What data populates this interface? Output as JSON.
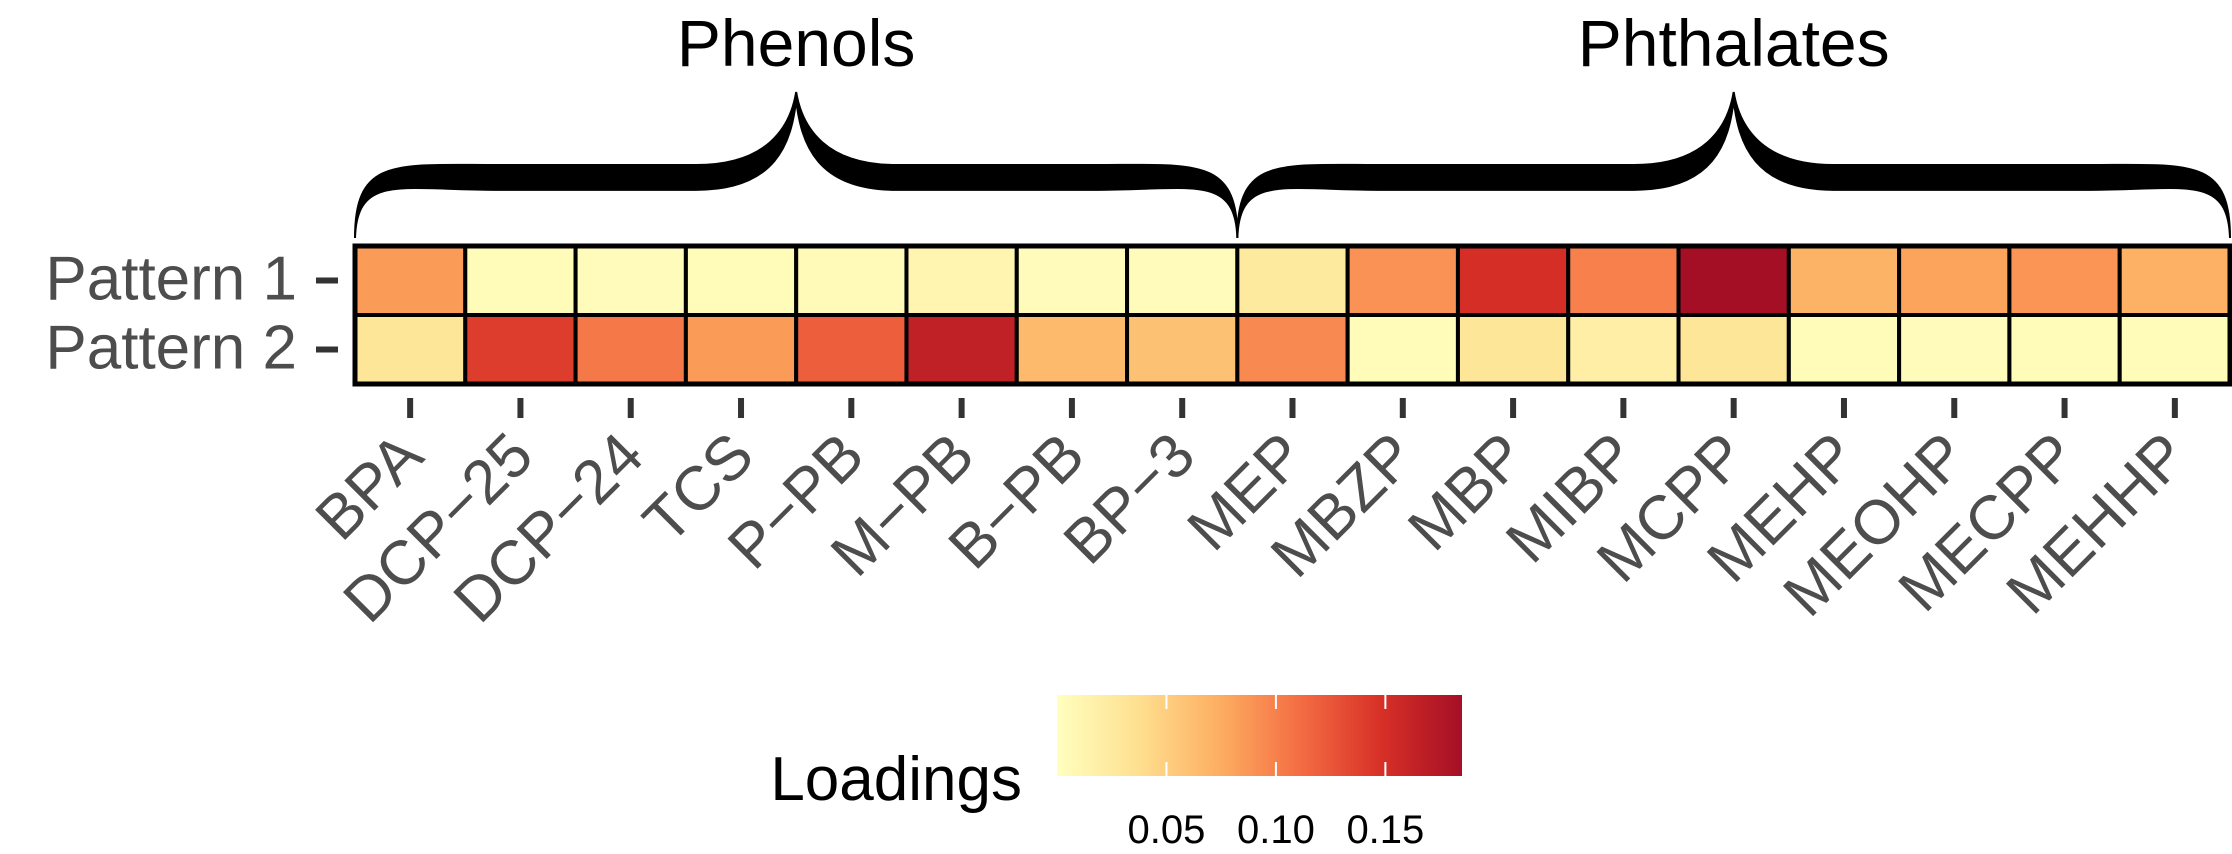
{
  "chart_data": {
    "type": "heatmap",
    "groups": [
      {
        "label": "Phenols",
        "start": 0,
        "end": 8
      },
      {
        "label": "Phthalates",
        "start": 8,
        "end": 17
      }
    ],
    "x_categories": [
      "BPA",
      "DCP−25",
      "DCP−24",
      "TCS",
      "P−PB",
      "M−PB",
      "B−PB",
      "BP−3",
      "MEP",
      "MBZP",
      "MBP",
      "MIBP",
      "MCPP",
      "MEHP",
      "MEOHP",
      "MECPP",
      "MEHHP"
    ],
    "y_categories": [
      "Pattern 1",
      "Pattern 2"
    ],
    "values": [
      [
        0.085,
        0.005,
        0.003,
        0.004,
        0.006,
        0.012,
        0.003,
        0.003,
        0.025,
        0.09,
        0.15,
        0.1,
        0.185,
        0.07,
        0.08,
        0.088,
        0.072
      ],
      [
        0.03,
        0.14,
        0.105,
        0.085,
        0.12,
        0.165,
        0.065,
        0.06,
        0.095,
        0.005,
        0.03,
        0.02,
        0.03,
        0.004,
        0.003,
        0.005,
        0.004
      ]
    ],
    "colorbar": {
      "title": "Loadings",
      "min": 0.0,
      "max": 0.185,
      "ticks": [
        0.05,
        0.1,
        0.15
      ],
      "tick_labels": [
        "0.05",
        "0.10",
        "0.15"
      ],
      "colors": [
        "#ffffbf",
        "#fee090",
        "#fdae61",
        "#f46d43",
        "#d73027",
        "#a50f26"
      ]
    }
  }
}
